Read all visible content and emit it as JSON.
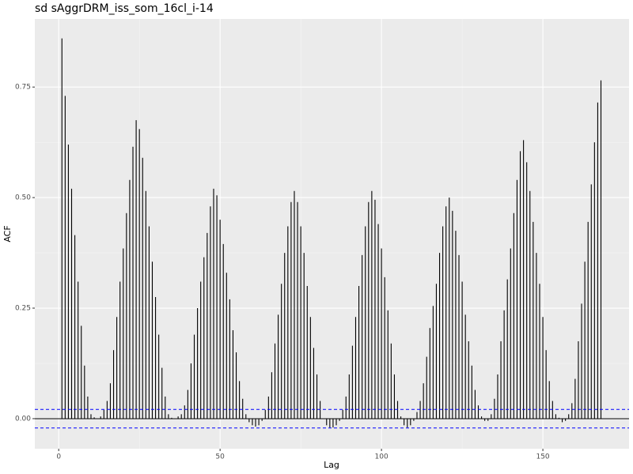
{
  "chart_data": {
    "type": "acf",
    "title": "sd sAggrDRM_iss_som_16cl_i-14",
    "x_label": "Lag",
    "y_label": "ACF",
    "x": [
      1,
      2,
      3,
      4,
      5,
      6,
      7,
      8,
      9,
      10,
      11,
      12,
      13,
      14,
      15,
      16,
      17,
      18,
      19,
      20,
      21,
      22,
      23,
      24,
      25,
      26,
      27,
      28,
      29,
      30,
      31,
      32,
      33,
      34,
      35,
      36,
      37,
      38,
      39,
      40,
      41,
      42,
      43,
      44,
      45,
      46,
      47,
      48,
      49,
      50,
      51,
      52,
      53,
      54,
      55,
      56,
      57,
      58,
      59,
      60,
      61,
      62,
      63,
      64,
      65,
      66,
      67,
      68,
      69,
      70,
      71,
      72,
      73,
      74,
      75,
      76,
      77,
      78,
      79,
      80,
      81,
      82,
      83,
      84,
      85,
      86,
      87,
      88,
      89,
      90,
      91,
      92,
      93,
      94,
      95,
      96,
      97,
      98,
      99,
      100,
      101,
      102,
      103,
      104,
      105,
      106,
      107,
      108,
      109,
      110,
      111,
      112,
      113,
      114,
      115,
      116,
      117,
      118,
      119,
      120,
      121,
      122,
      123,
      124,
      125,
      126,
      127,
      128,
      129,
      130,
      131,
      132,
      133,
      134,
      135,
      136,
      137,
      138,
      139,
      140,
      141,
      142,
      143,
      144,
      145,
      146,
      147,
      148,
      149,
      150,
      151,
      152,
      153,
      154,
      155,
      156,
      157,
      158,
      159,
      160,
      161,
      162,
      163,
      164,
      165,
      166,
      167,
      168
    ],
    "values": [
      0.86,
      0.73,
      0.62,
      0.52,
      0.415,
      0.31,
      0.21,
      0.12,
      0.05,
      0.01,
      0.003,
      0.0,
      0.005,
      0.02,
      0.04,
      0.08,
      0.155,
      0.23,
      0.31,
      0.385,
      0.465,
      0.54,
      0.615,
      0.675,
      0.655,
      0.59,
      0.515,
      0.435,
      0.355,
      0.275,
      0.19,
      0.115,
      0.05,
      0.01,
      0.002,
      0.0,
      0.005,
      0.01,
      0.03,
      0.065,
      0.125,
      0.19,
      0.25,
      0.31,
      0.365,
      0.42,
      0.48,
      0.52,
      0.505,
      0.45,
      0.395,
      0.33,
      0.27,
      0.2,
      0.15,
      0.085,
      0.045,
      0.01,
      -0.008,
      -0.015,
      -0.018,
      -0.015,
      -0.005,
      0.02,
      0.05,
      0.105,
      0.17,
      0.235,
      0.305,
      0.375,
      0.435,
      0.49,
      0.515,
      0.49,
      0.435,
      0.375,
      0.3,
      0.23,
      0.16,
      0.1,
      0.04,
      0.0,
      -0.015,
      -0.02,
      -0.02,
      -0.015,
      -0.005,
      0.02,
      0.05,
      0.1,
      0.165,
      0.23,
      0.3,
      0.37,
      0.435,
      0.49,
      0.515,
      0.495,
      0.44,
      0.385,
      0.32,
      0.245,
      0.17,
      0.1,
      0.04,
      0.005,
      -0.015,
      -0.02,
      -0.015,
      -0.005,
      0.015,
      0.04,
      0.08,
      0.14,
      0.205,
      0.255,
      0.305,
      0.375,
      0.435,
      0.48,
      0.5,
      0.47,
      0.425,
      0.37,
      0.31,
      0.235,
      0.175,
      0.12,
      0.065,
      0.03,
      0.005,
      -0.005,
      -0.005,
      0.01,
      0.045,
      0.1,
      0.175,
      0.245,
      0.315,
      0.385,
      0.465,
      0.54,
      0.605,
      0.63,
      0.58,
      0.515,
      0.445,
      0.375,
      0.305,
      0.23,
      0.155,
      0.085,
      0.04,
      0.01,
      0.002,
      -0.008,
      -0.005,
      0.01,
      0.035,
      0.09,
      0.175,
      0.26,
      0.355,
      0.445,
      0.53,
      0.625,
      0.715,
      0.765
    ],
    "color": "#000000",
    "conf_lines": [
      0.021,
      -0.021
    ],
    "conf_color": "#0000ff",
    "xlim": [
      -7.4,
      176.7
    ],
    "xticks": [
      0,
      50,
      100,
      150
    ],
    "ylim": [
      -0.068,
      0.904
    ],
    "yticks": [
      {
        "value": 0,
        "label": "0.00"
      },
      {
        "value": 0.25,
        "label": "0.25"
      },
      {
        "value": 0.5,
        "label": "0.50"
      },
      {
        "value": 0.75,
        "label": "0.75"
      }
    ],
    "grid": true
  }
}
